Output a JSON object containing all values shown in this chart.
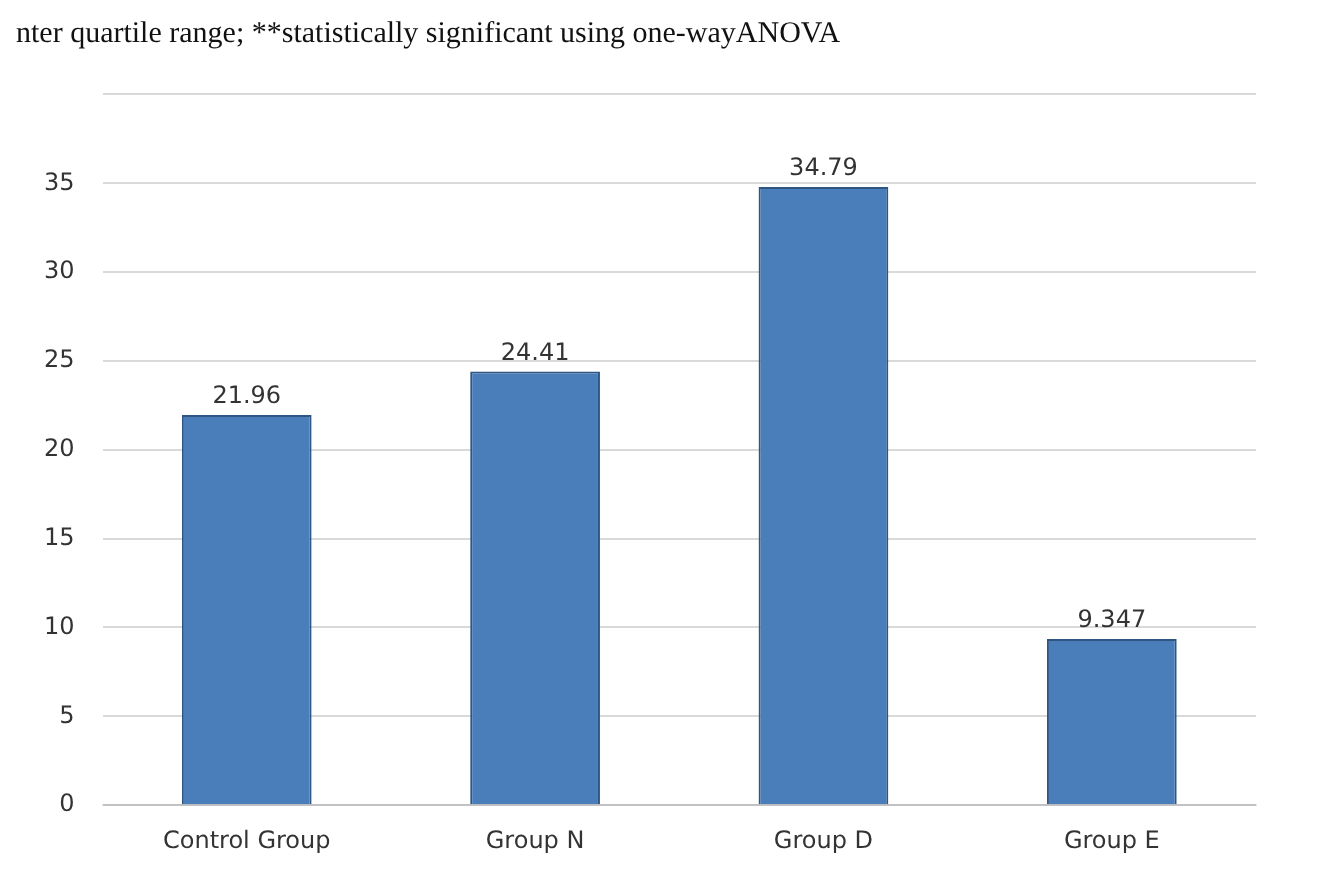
{
  "chart_data": {
    "type": "bar",
    "annotations": [
      "nter quartile range; **statistically significant using one-wayANOVA"
    ],
    "categories": [
      "Control Group",
      "Group N",
      "Group D",
      "Group E"
    ],
    "values": [
      21.96,
      24.41,
      34.79,
      9.347
    ],
    "color": "#4a7ebb",
    "ylim": [
      0,
      40
    ],
    "yticks": [
      0,
      5,
      10,
      15,
      20,
      25,
      30,
      35,
      {
        "value": 40,
        "label": null
      }
    ],
    "grid": "y",
    "data_labels": true,
    "legend": false
  }
}
